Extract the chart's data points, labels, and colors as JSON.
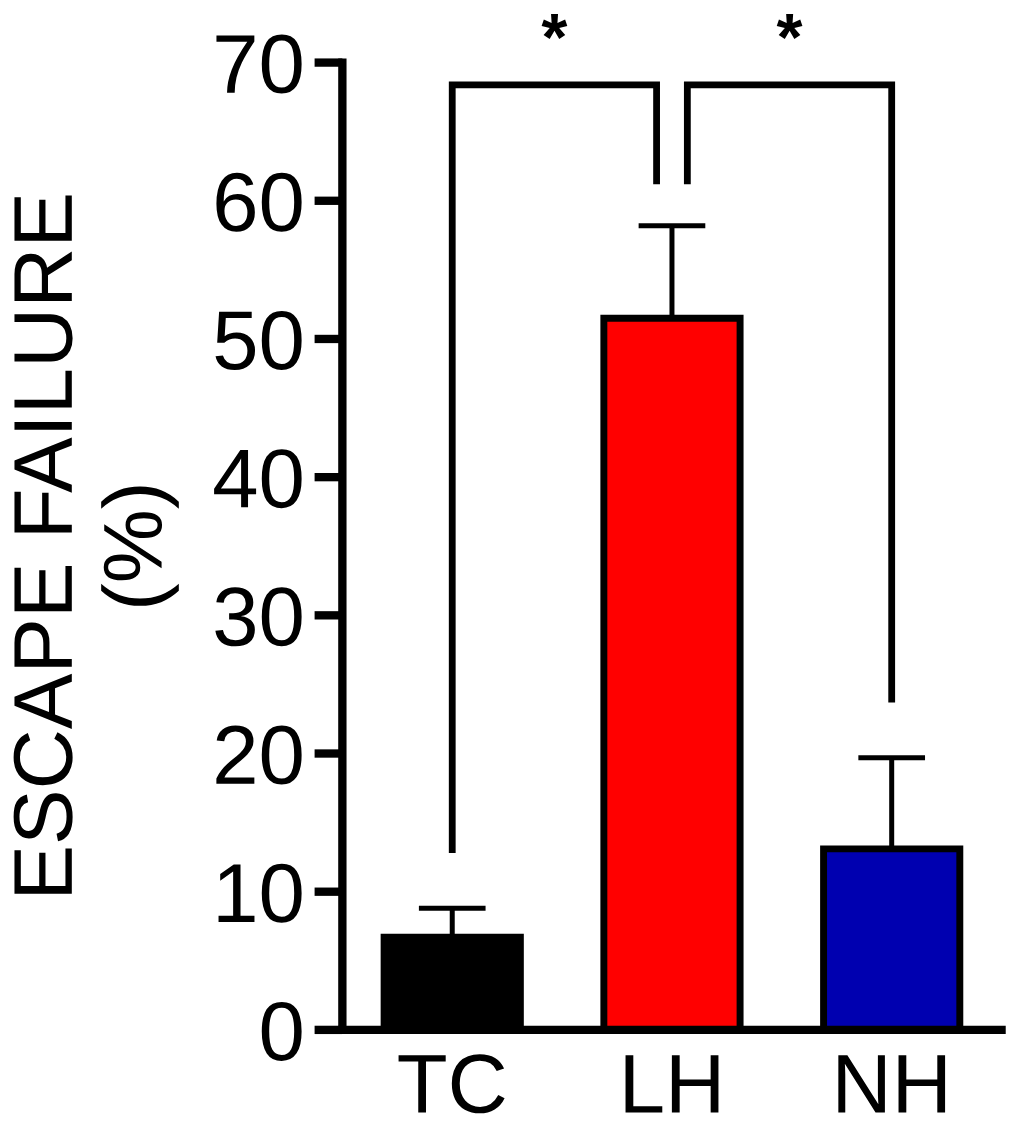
{
  "chart_data": {
    "type": "bar",
    "ylabel": "ESCAPE FAILURE\n(%)",
    "categories": [
      "TC",
      "LH",
      "NH"
    ],
    "values": [
      6.7,
      51.5,
      13.1
    ],
    "colors": [
      "#000000",
      "#ff0000",
      "#0000b0"
    ],
    "errors": [
      [
        6.7,
        8.8
      ],
      [
        51.5,
        58.2
      ],
      [
        13.1,
        19.7
      ]
    ],
    "ylim": [
      0,
      70
    ],
    "yticks": [
      0,
      10,
      20,
      30,
      40,
      50,
      60,
      70
    ],
    "grid": false,
    "annotations": [
      "*",
      "*"
    ]
  }
}
